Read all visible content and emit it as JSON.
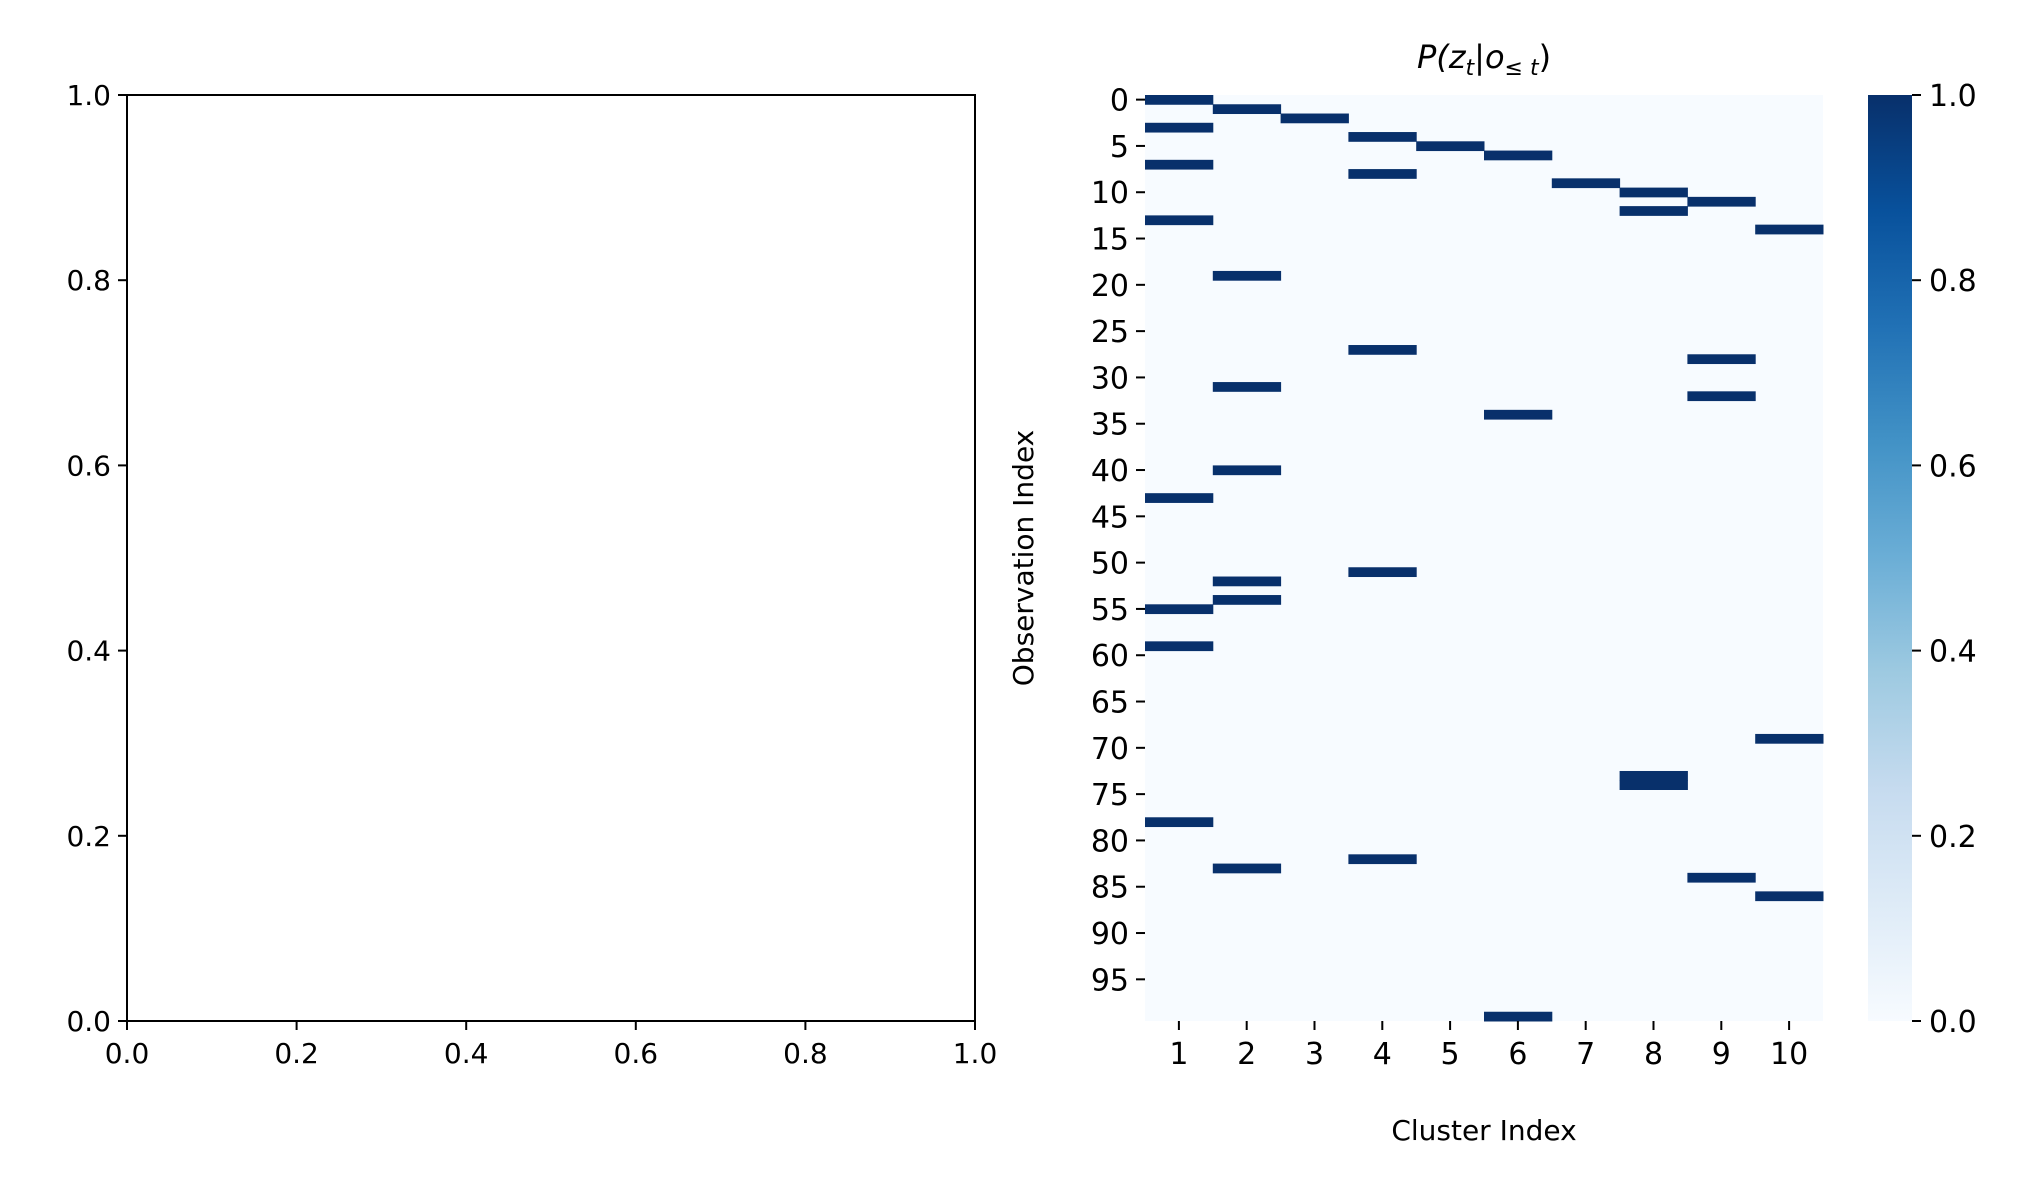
{
  "chart_data": [
    {
      "type": "scatter",
      "title": "",
      "xlabel": "",
      "ylabel": "",
      "xlim": [
        0.0,
        1.0
      ],
      "ylim": [
        0.0,
        1.0
      ],
      "xticks": [
        "0.0",
        "0.2",
        "0.4",
        "0.6",
        "0.8",
        "1.0"
      ],
      "yticks": [
        "0.0",
        "0.2",
        "0.4",
        "0.6",
        "0.8",
        "1.0"
      ],
      "series": []
    },
    {
      "type": "heatmap",
      "title_main": "P(z",
      "title_sub1": "t",
      "title_mid": "|o",
      "title_sub2": "≤ t",
      "title_end": ")",
      "xlabel": "Cluster Index",
      "ylabel": "Observation Index",
      "categories": [
        "1",
        "2",
        "3",
        "4",
        "5",
        "6",
        "7",
        "8",
        "9",
        "10"
      ],
      "n_rows": 100,
      "yticks": [
        "0",
        "5",
        "10",
        "15",
        "20",
        "25",
        "30",
        "35",
        "40",
        "45",
        "50",
        "55",
        "60",
        "65",
        "70",
        "75",
        "80",
        "85",
        "90",
        "95"
      ],
      "value_range": [
        0.0,
        1.0
      ],
      "background_value": 0.0,
      "cells": [
        {
          "row": 0,
          "col": 1,
          "value": 1.0
        },
        {
          "row": 1,
          "col": 2,
          "value": 1.0
        },
        {
          "row": 2,
          "col": 3,
          "value": 1.0
        },
        {
          "row": 3,
          "col": 1,
          "value": 1.0
        },
        {
          "row": 4,
          "col": 4,
          "value": 1.0
        },
        {
          "row": 5,
          "col": 5,
          "value": 1.0
        },
        {
          "row": 6,
          "col": 6,
          "value": 1.0
        },
        {
          "row": 7,
          "col": 1,
          "value": 1.0
        },
        {
          "row": 8,
          "col": 4,
          "value": 1.0
        },
        {
          "row": 9,
          "col": 7,
          "value": 1.0
        },
        {
          "row": 10,
          "col": 8,
          "value": 1.0
        },
        {
          "row": 11,
          "col": 9,
          "value": 1.0
        },
        {
          "row": 12,
          "col": 8,
          "value": 1.0
        },
        {
          "row": 13,
          "col": 1,
          "value": 1.0
        },
        {
          "row": 14,
          "col": 10,
          "value": 1.0
        },
        {
          "row": 19,
          "col": 2,
          "value": 1.0
        },
        {
          "row": 27,
          "col": 4,
          "value": 1.0
        },
        {
          "row": 28,
          "col": 9,
          "value": 1.0
        },
        {
          "row": 31,
          "col": 2,
          "value": 1.0
        },
        {
          "row": 32,
          "col": 9,
          "value": 1.0
        },
        {
          "row": 34,
          "col": 6,
          "value": 1.0
        },
        {
          "row": 40,
          "col": 2,
          "value": 1.0
        },
        {
          "row": 43,
          "col": 1,
          "value": 1.0
        },
        {
          "row": 51,
          "col": 4,
          "value": 1.0
        },
        {
          "row": 52,
          "col": 2,
          "value": 1.0
        },
        {
          "row": 54,
          "col": 2,
          "value": 1.0
        },
        {
          "row": 55,
          "col": 1,
          "value": 1.0
        },
        {
          "row": 59,
          "col": 1,
          "value": 1.0
        },
        {
          "row": 69,
          "col": 10,
          "value": 1.0
        },
        {
          "row": 73,
          "col": 8,
          "value": 1.0
        },
        {
          "row": 74,
          "col": 8,
          "value": 1.0
        },
        {
          "row": 78,
          "col": 1,
          "value": 1.0
        },
        {
          "row": 82,
          "col": 4,
          "value": 1.0
        },
        {
          "row": 83,
          "col": 2,
          "value": 1.0
        },
        {
          "row": 84,
          "col": 9,
          "value": 1.0
        },
        {
          "row": 86,
          "col": 10,
          "value": 1.0
        },
        {
          "row": 99,
          "col": 6,
          "value": 1.0
        }
      ],
      "colormap": "Blues",
      "colors": {
        "low": "#f7fbff",
        "high": "#08306b"
      },
      "colorbar_ticks": [
        "0.0",
        "0.2",
        "0.4",
        "0.6",
        "0.8",
        "1.0"
      ]
    }
  ]
}
